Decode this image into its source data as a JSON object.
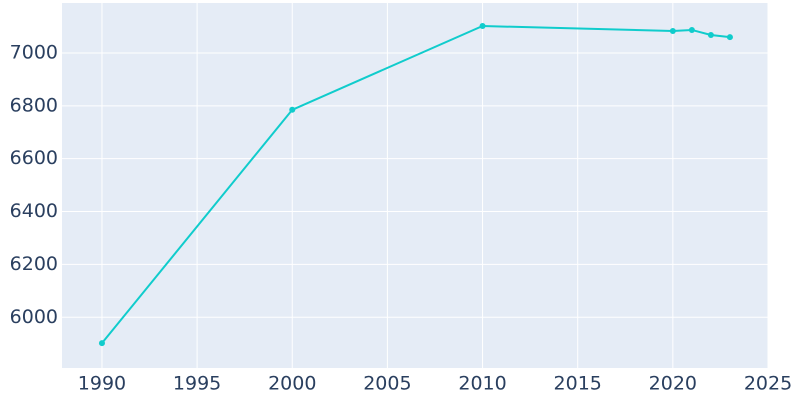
{
  "chart_data": {
    "type": "line",
    "x": [
      1990,
      2000,
      2010,
      2020,
      2021,
      2022,
      2023
    ],
    "series": [
      {
        "color": "#10cccc",
        "values": [
          5902,
          6785,
          7102,
          7083,
          7087,
          7068,
          7060
        ]
      }
    ],
    "xlim": [
      1987.9,
      2025
    ],
    "xticks": [
      1990,
      1995,
      2000,
      2005,
      2010,
      2015,
      2020,
      2025
    ],
    "ylim": [
      5808,
      7189
    ],
    "yticks": [
      6000,
      6200,
      6400,
      6600,
      6800,
      7000
    ],
    "grid": true
  }
}
